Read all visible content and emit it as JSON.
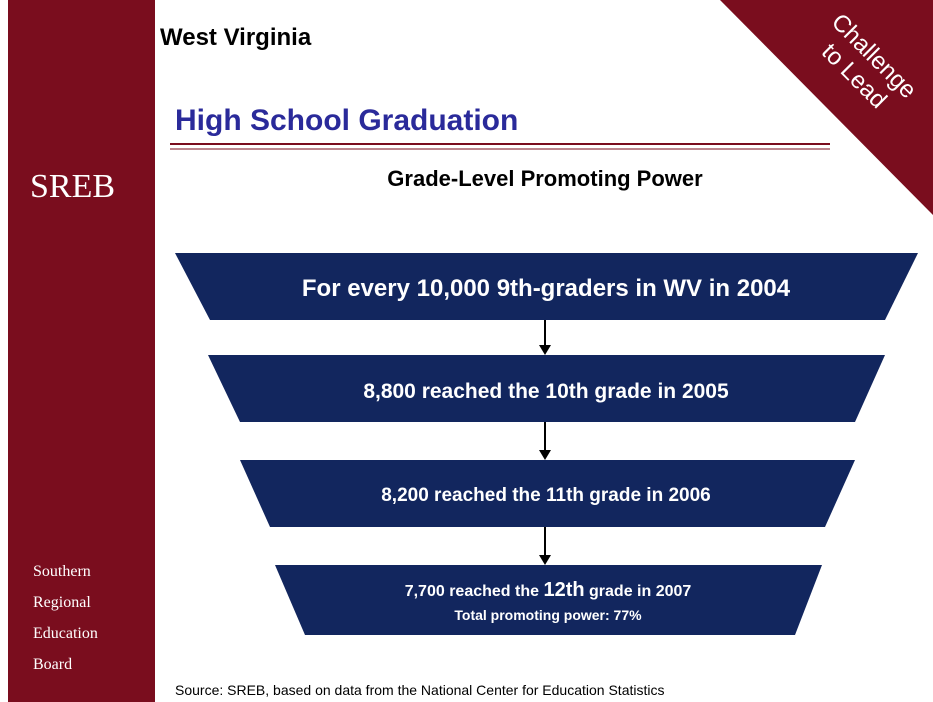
{
  "header": {
    "state": "West Virginia",
    "title": "High School Graduation",
    "subtitle": "Grade-Level Promoting Power",
    "banner": [
      "Challenge",
      "to Lead"
    ]
  },
  "sidebar": {
    "logo": "SREB",
    "organization": [
      "Southern",
      "Regional",
      "Education",
      "Board"
    ]
  },
  "funnel": {
    "stages": [
      {
        "text": "For every 10,000 9th-graders in WV in 2004"
      },
      {
        "text": "8,800 reached the 10th grade in 2005"
      },
      {
        "text": "8,200 reached the 11th grade in 2006"
      },
      {
        "text_parts": [
          "7,700 reached the ",
          "12th",
          " grade in 2007"
        ],
        "subtext": "Total promoting power: 77%"
      }
    ]
  },
  "footer": {
    "source": "Source: SREB, based on data from the National Center for Education Statistics"
  }
}
